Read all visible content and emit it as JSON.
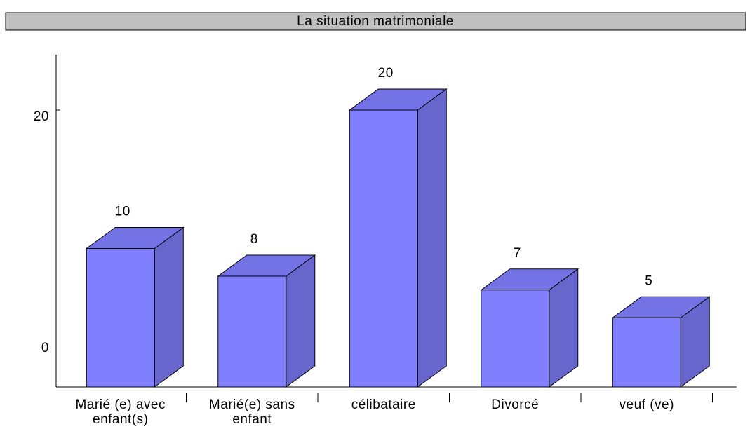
{
  "chart_data": {
    "type": "bar3d",
    "title": "La situation matrimoniale",
    "categories": [
      [
        "Marié (e) avec",
        "enfant(s)"
      ],
      [
        "Marié(e) sans",
        "enfant"
      ],
      [
        "célibataire"
      ],
      [
        "Divorcé"
      ],
      [
        "veuf (ve)"
      ]
    ],
    "values": [
      10,
      8,
      20,
      7,
      5
    ],
    "color": "#8080ff",
    "side_color": "#6666cc",
    "top_color": "#7373e6",
    "ylim": [
      0,
      24
    ],
    "yticks": [
      0,
      20
    ]
  }
}
